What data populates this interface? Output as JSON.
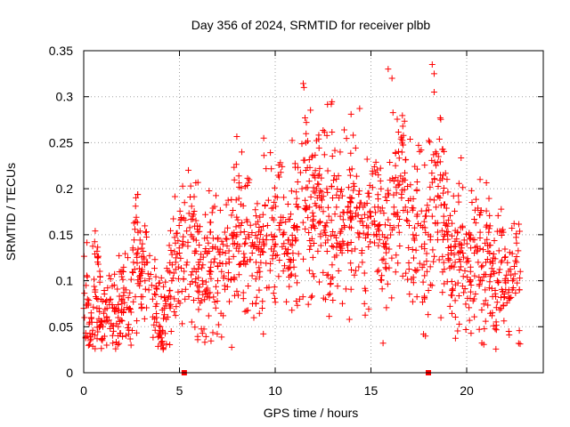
{
  "chart_data": {
    "type": "scatter",
    "title": "Day 356 of 2024, SRMTID for receiver plbb",
    "xlabel": "GPS time / hours",
    "ylabel": "SRMTID / TECUs",
    "xlim": [
      0,
      24
    ],
    "ylim": [
      0,
      0.35
    ],
    "x_ticks": [
      0,
      5,
      10,
      15,
      20
    ],
    "x_tick_labels": [
      "0",
      "5",
      "10",
      "15",
      "20"
    ],
    "y_ticks": [
      0,
      0.05,
      0.1,
      0.15,
      0.2,
      0.25,
      0.3,
      0.35
    ],
    "y_tick_labels": [
      "0",
      "0.05",
      "0.1",
      "0.15",
      "0.2",
      "0.25",
      "0.3",
      "0.35"
    ],
    "grid": true,
    "marker": "+",
    "color": "#ff0000",
    "series": [
      {
        "name": "SRMTID",
        "x": [
          0.0,
          0.2,
          0.4,
          0.6,
          0.8,
          1.0,
          1.2,
          1.4,
          1.6,
          1.8,
          2.0,
          2.2,
          2.4,
          2.6,
          2.8,
          3.0,
          3.2,
          3.4,
          3.6,
          3.8,
          4.0,
          4.2,
          4.4,
          4.6,
          4.8,
          5.0,
          5.2,
          5.4,
          5.6,
          5.8,
          6.0,
          6.2,
          6.4,
          6.6,
          6.8,
          7.0,
          7.2,
          7.4,
          7.6,
          7.8,
          8.0,
          8.2,
          8.4,
          8.6,
          8.8,
          9.0,
          9.2,
          9.4,
          9.6,
          9.8,
          10.0,
          10.2,
          10.4,
          10.6,
          10.8,
          11.0,
          11.2,
          11.4,
          11.6,
          11.8,
          12.0,
          12.2,
          12.4,
          12.6,
          12.8,
          13.0,
          13.2,
          13.4,
          13.6,
          13.8,
          14.0,
          14.2,
          14.4,
          14.6,
          14.8,
          15.0,
          15.2,
          15.4,
          15.6,
          15.8,
          16.0,
          16.2,
          16.4,
          16.6,
          16.8,
          17.0,
          17.2,
          17.4,
          17.6,
          17.8,
          18.0,
          18.2,
          18.4,
          18.6,
          18.8,
          19.0,
          19.2,
          19.4,
          19.6,
          19.8,
          20.0,
          20.2,
          20.4,
          20.6,
          20.8,
          21.0,
          21.2,
          21.4,
          21.6,
          21.8,
          22.0,
          22.2,
          22.4,
          22.6,
          22.8
        ],
        "y": [
          0.07,
          0.08,
          0.06,
          0.09,
          0.07,
          0.05,
          0.06,
          0.08,
          0.07,
          0.06,
          0.08,
          0.09,
          0.07,
          0.12,
          0.13,
          0.11,
          0.1,
          0.09,
          0.08,
          0.06,
          0.05,
          0.07,
          0.08,
          0.1,
          0.12,
          0.13,
          0.14,
          0.12,
          0.15,
          0.13,
          0.12,
          0.1,
          0.09,
          0.11,
          0.12,
          0.1,
          0.11,
          0.13,
          0.12,
          0.14,
          0.15,
          0.16,
          0.14,
          0.15,
          0.13,
          0.12,
          0.11,
          0.14,
          0.16,
          0.15,
          0.14,
          0.16,
          0.15,
          0.13,
          0.14,
          0.16,
          0.18,
          0.2,
          0.22,
          0.18,
          0.17,
          0.19,
          0.18,
          0.16,
          0.17,
          0.19,
          0.18,
          0.17,
          0.16,
          0.18,
          0.19,
          0.17,
          0.18,
          0.16,
          0.15,
          0.17,
          0.18,
          0.16,
          0.15,
          0.14,
          0.16,
          0.18,
          0.17,
          0.19,
          0.18,
          0.16,
          0.15,
          0.17,
          0.16,
          0.14,
          0.15,
          0.17,
          0.18,
          0.19,
          0.17,
          0.15,
          0.13,
          0.12,
          0.14,
          0.13,
          0.12,
          0.11,
          0.13,
          0.12,
          0.1,
          0.12,
          0.13,
          0.11,
          0.1,
          0.12,
          0.1,
          0.09,
          0.1,
          0.12,
          0.11
        ]
      }
    ],
    "outliers": [
      {
        "x": 11.5,
        "y": 0.31
      },
      {
        "x": 15.9,
        "y": 0.33
      },
      {
        "x": 16.1,
        "y": 0.32
      },
      {
        "x": 18.2,
        "y": 0.335
      },
      {
        "x": 18.3,
        "y": 0.325
      },
      {
        "x": 18.3,
        "y": 0.305
      },
      {
        "x": 9.4,
        "y": 0.255
      },
      {
        "x": 20.7,
        "y": 0.21
      },
      {
        "x": 4.1,
        "y": 0.03
      },
      {
        "x": 1.2,
        "y": 0.03
      },
      {
        "x": 22.2,
        "y": 0.045
      }
    ],
    "baseline_markers": [
      {
        "x": 5.25,
        "y": 0.0
      },
      {
        "x": 18.0,
        "y": 0.0
      }
    ]
  }
}
